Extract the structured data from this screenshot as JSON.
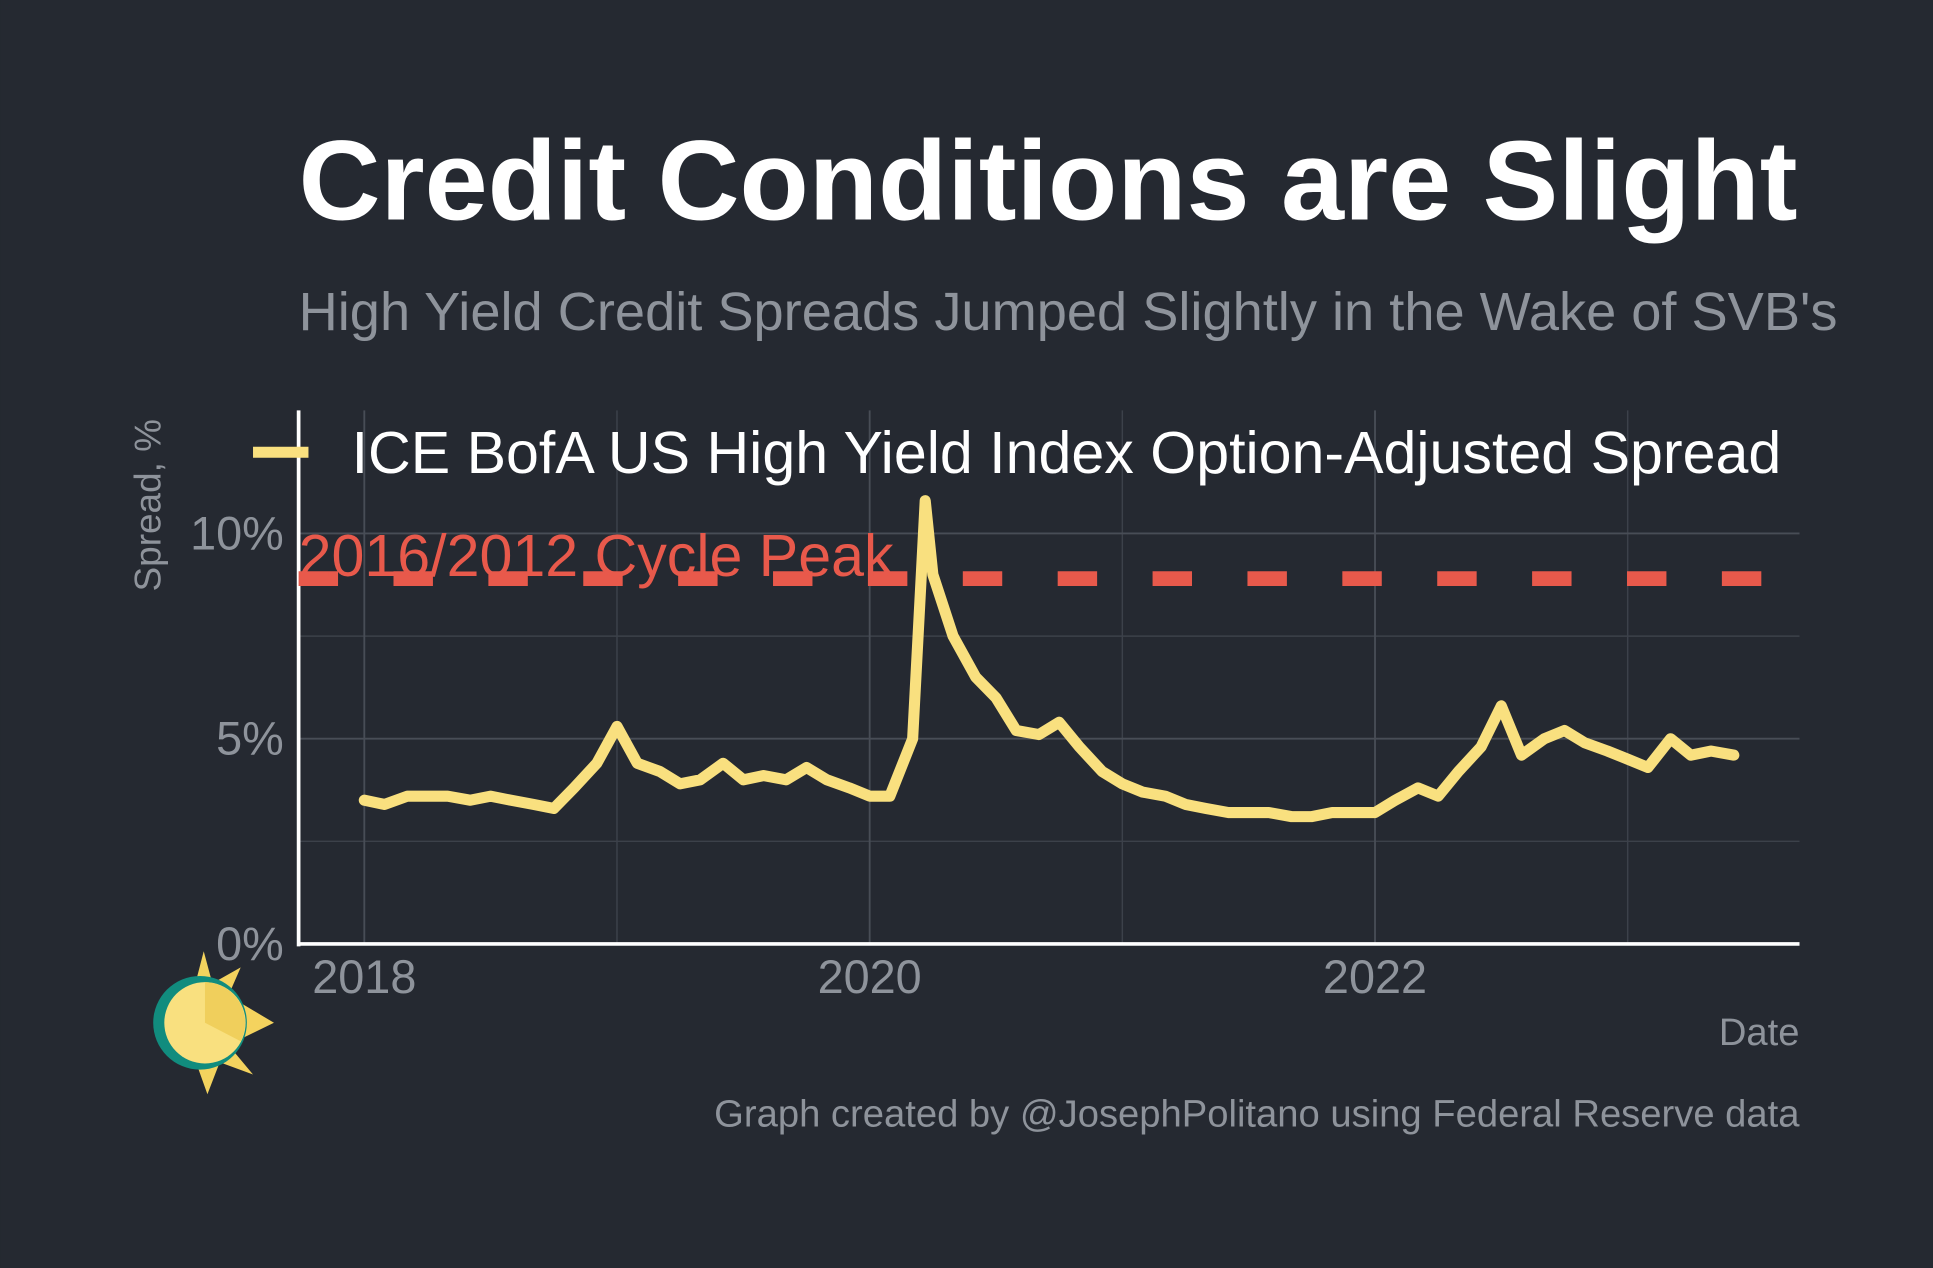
{
  "chart_data": {
    "type": "line",
    "title": "Credit Conditions are Slight",
    "subtitle": "High Yield Credit Spreads Jumped Slightly in the Wake of SVB's",
    "y_label": "Spread, %",
    "x_label": "Date",
    "caption": "Graph created by @JosephPolitano using Federal Reserve data",
    "x": [
      2018.0,
      2018.08,
      2018.17,
      2018.25,
      2018.33,
      2018.42,
      2018.5,
      2018.58,
      2018.67,
      2018.75,
      2018.83,
      2018.92,
      2019.0,
      2019.08,
      2019.17,
      2019.25,
      2019.33,
      2019.42,
      2019.5,
      2019.58,
      2019.67,
      2019.75,
      2019.83,
      2019.92,
      2020.0,
      2020.08,
      2020.17,
      2020.22,
      2020.25,
      2020.33,
      2020.42,
      2020.5,
      2020.58,
      2020.67,
      2020.75,
      2020.83,
      2020.92,
      2021.0,
      2021.08,
      2021.17,
      2021.25,
      2021.33,
      2021.42,
      2021.5,
      2021.58,
      2021.67,
      2021.75,
      2021.83,
      2021.92,
      2022.0,
      2022.08,
      2022.17,
      2022.25,
      2022.33,
      2022.42,
      2022.5,
      2022.58,
      2022.67,
      2022.75,
      2022.83,
      2022.92,
      2023.0,
      2023.08,
      2023.17,
      2023.25,
      2023.33,
      2023.42
    ],
    "series": [
      {
        "name": "ICE BofA US High Yield Index Option-Adjusted Spread",
        "color": "#f9e07f",
        "values": [
          3.5,
          3.4,
          3.6,
          3.6,
          3.6,
          3.5,
          3.6,
          3.5,
          3.4,
          3.3,
          3.8,
          4.4,
          5.3,
          4.4,
          4.2,
          3.9,
          4.0,
          4.4,
          4.0,
          4.1,
          4.0,
          4.3,
          4.0,
          3.8,
          3.6,
          3.6,
          5.0,
          10.8,
          9.0,
          7.5,
          6.5,
          6.0,
          5.2,
          5.1,
          5.4,
          4.8,
          4.2,
          3.9,
          3.7,
          3.6,
          3.4,
          3.3,
          3.2,
          3.2,
          3.2,
          3.1,
          3.1,
          3.2,
          3.2,
          3.2,
          3.5,
          3.8,
          3.6,
          4.2,
          4.8,
          5.8,
          4.6,
          5.0,
          5.2,
          4.9,
          4.7,
          4.5,
          4.3,
          5.0,
          4.6,
          4.7,
          4.6
        ]
      }
    ],
    "reference_line": {
      "label": "2016/2012 Cycle Peak",
      "value": 8.9,
      "color": "#e8594b"
    },
    "xlim": [
      2017.74,
      2023.68
    ],
    "xticks": [
      2018,
      2020,
      2022
    ],
    "minor_xticks": [
      2019,
      2021,
      2023
    ],
    "ylim": [
      0,
      13
    ],
    "yticks": [
      {
        "value": 0,
        "label": "0%"
      },
      {
        "value": 5,
        "label": "5%"
      },
      {
        "value": 10,
        "label": "10%"
      }
    ],
    "minor_yticks": [
      2.5,
      7.5
    ],
    "grid": true,
    "legend": "top-left"
  }
}
